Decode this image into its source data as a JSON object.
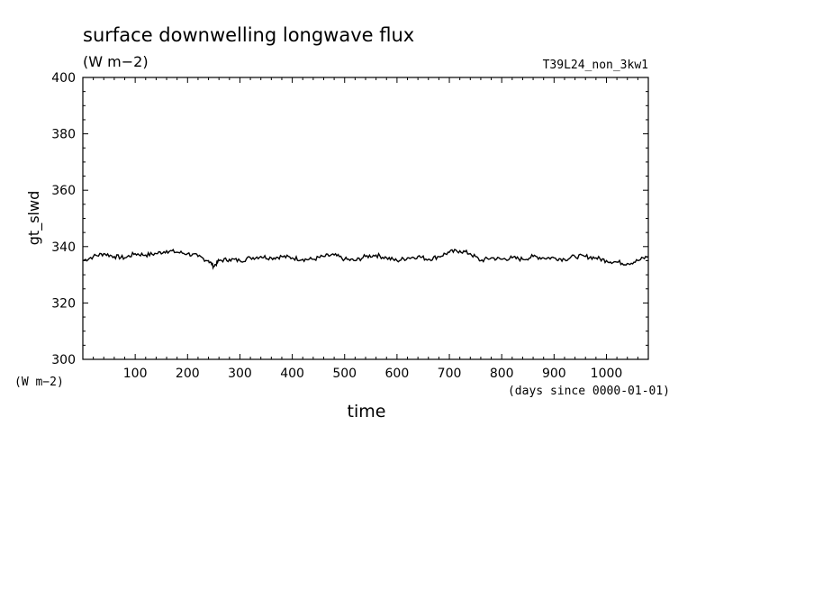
{
  "chart_data": {
    "type": "line",
    "title": "surface downwelling longwave flux",
    "units": "(W m−2)",
    "run_label": "T39L24_non_3kw1",
    "ylabel": "gt_slwd",
    "yunits_label": "(W m−2)",
    "xlabel": "time",
    "xunits_label": "(days since 0000-01-01)",
    "xlim": [
      0,
      1080
    ],
    "ylim": [
      300,
      400
    ],
    "x_ticks": [
      100,
      200,
      300,
      400,
      500,
      600,
      700,
      800,
      900,
      1000
    ],
    "y_ticks": [
      300,
      320,
      340,
      360,
      380,
      400
    ],
    "grid": false,
    "series": [
      {
        "x": [
          0,
          20,
          40,
          60,
          80,
          100,
          120,
          140,
          160,
          180,
          200,
          220,
          240,
          250,
          260,
          280,
          300,
          320,
          340,
          360,
          380,
          400,
          420,
          440,
          460,
          480,
          500,
          520,
          540,
          560,
          580,
          600,
          620,
          640,
          660,
          680,
          700,
          720,
          740,
          760,
          780,
          800,
          820,
          840,
          860,
          880,
          900,
          920,
          940,
          960,
          980,
          1000,
          1020,
          1040,
          1060,
          1080
        ],
        "y": [
          335,
          336.5,
          337.5,
          336.5,
          336,
          337.5,
          337,
          337.5,
          338.5,
          338,
          337.5,
          336.5,
          335,
          333,
          335,
          335.5,
          335,
          336,
          336.5,
          336,
          336.5,
          336,
          335.5,
          335.5,
          336.5,
          337,
          335.5,
          335,
          336.5,
          337,
          336,
          335,
          336,
          336.5,
          335.5,
          336.5,
          338,
          338.5,
          337.5,
          335,
          336,
          335.5,
          336,
          335.5,
          336.5,
          336,
          336,
          335.5,
          336.5,
          336.5,
          336,
          335,
          334.5,
          334,
          335,
          336.5
        ]
      }
    ]
  }
}
